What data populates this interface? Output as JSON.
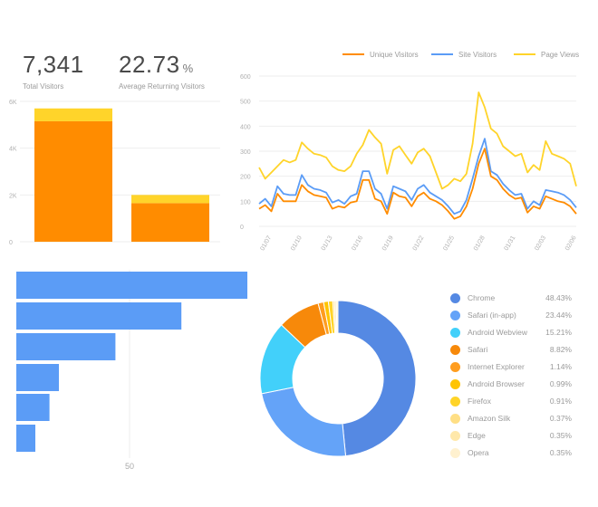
{
  "kpis": [
    {
      "value": "7,341",
      "unit": "",
      "label": "Total Visitors"
    },
    {
      "value": "22.73",
      "unit": "%",
      "label": "Average Returning Visitors"
    }
  ],
  "colors": {
    "orange": "#ff8c00",
    "yellow": "#ffd42a",
    "blue": "#5b9cf6",
    "grid": "#eeeeee"
  },
  "chart_data": [
    {
      "type": "bar",
      "stacked": true,
      "categories": [
        "",
        ""
      ],
      "series": [
        {
          "values": [
            5150,
            1650
          ],
          "color": "#ff8c00"
        },
        {
          "values": [
            550,
            350
          ],
          "color": "#ffd42a"
        }
      ],
      "yticks": [
        "0",
        "2K",
        "4K",
        "6K"
      ],
      "ylim": [
        0,
        6000
      ],
      "grid": true
    },
    {
      "type": "line",
      "legend_position": "top-right",
      "series": [
        {
          "name": "Unique Visitors",
          "color": "#ff8c00",
          "values": [
            70,
            85,
            60,
            130,
            100,
            100,
            100,
            165,
            140,
            125,
            120,
            115,
            70,
            80,
            75,
            95,
            100,
            185,
            185,
            110,
            100,
            50,
            135,
            120,
            115,
            80,
            120,
            135,
            110,
            100,
            85,
            60,
            30,
            40,
            80,
            150,
            250,
            310,
            200,
            185,
            150,
            125,
            110,
            115,
            55,
            80,
            70,
            120,
            110,
            100,
            95,
            80,
            50
          ]
        },
        {
          "name": "Site Visitors",
          "color": "#5b9cf6",
          "values": [
            90,
            110,
            80,
            160,
            130,
            125,
            125,
            205,
            165,
            150,
            145,
            135,
            95,
            105,
            90,
            120,
            130,
            220,
            220,
            150,
            130,
            70,
            160,
            150,
            140,
            105,
            150,
            165,
            135,
            120,
            105,
            80,
            50,
            60,
            105,
            190,
            280,
            350,
            220,
            205,
            170,
            145,
            125,
            130,
            70,
            100,
            85,
            145,
            140,
            135,
            125,
            105,
            75
          ]
        },
        {
          "name": "Page Views",
          "color": "#ffd42a",
          "values": [
            235,
            190,
            215,
            240,
            265,
            255,
            265,
            335,
            310,
            290,
            285,
            275,
            240,
            225,
            220,
            240,
            290,
            325,
            385,
            355,
            330,
            210,
            305,
            320,
            285,
            250,
            295,
            310,
            280,
            215,
            150,
            165,
            190,
            180,
            210,
            330,
            535,
            475,
            390,
            370,
            320,
            300,
            280,
            290,
            215,
            245,
            225,
            340,
            290,
            280,
            270,
            250,
            160
          ]
        }
      ],
      "x_tick_labels": [
        "01/07",
        "01/10",
        "01/13",
        "01/16",
        "01/19",
        "01/22",
        "01/25",
        "01/28",
        "01/31",
        "02/03",
        "02/06"
      ],
      "yticks": [
        "0",
        "100",
        "200",
        "300",
        "400",
        "500",
        "600"
      ],
      "ylim": [
        0,
        600
      ],
      "grid": true
    },
    {
      "type": "bar",
      "orientation": "horizontal",
      "values": [
        100,
        72,
        44,
        20,
        16,
        10
      ],
      "xticks": [
        "50"
      ],
      "xlim": [
        -5,
        100
      ],
      "color": "#5b9cf6"
    },
    {
      "type": "pie",
      "donut": true,
      "slices": [
        {
          "label": "Chrome",
          "pct": "48.43%",
          "value": 48.43,
          "color": "#5589e3"
        },
        {
          "label": "Safari (in-app)",
          "pct": "23.44%",
          "value": 23.44,
          "color": "#64a3f8"
        },
        {
          "label": "Android Webview",
          "pct": "15.21%",
          "value": 15.21,
          "color": "#42d0fa"
        },
        {
          "label": "Safari",
          "pct": "8.82%",
          "value": 8.82,
          "color": "#f7890a"
        },
        {
          "label": "Internet Explorer",
          "pct": "1.14%",
          "value": 1.14,
          "color": "#ff9d1f"
        },
        {
          "label": "Android Browser",
          "pct": "0.99%",
          "value": 0.99,
          "color": "#ffc400"
        },
        {
          "label": "Firefox",
          "pct": "0.91%",
          "value": 0.91,
          "color": "#ffd428"
        },
        {
          "label": "Amazon Silk",
          "pct": "0.37%",
          "value": 0.37,
          "color": "#ffdf85"
        },
        {
          "label": "Edge",
          "pct": "0.35%",
          "value": 0.35,
          "color": "#ffe8aa"
        },
        {
          "label": "Opera",
          "pct": "0.35%",
          "value": 0.35,
          "color": "#fff1cf"
        }
      ]
    }
  ]
}
